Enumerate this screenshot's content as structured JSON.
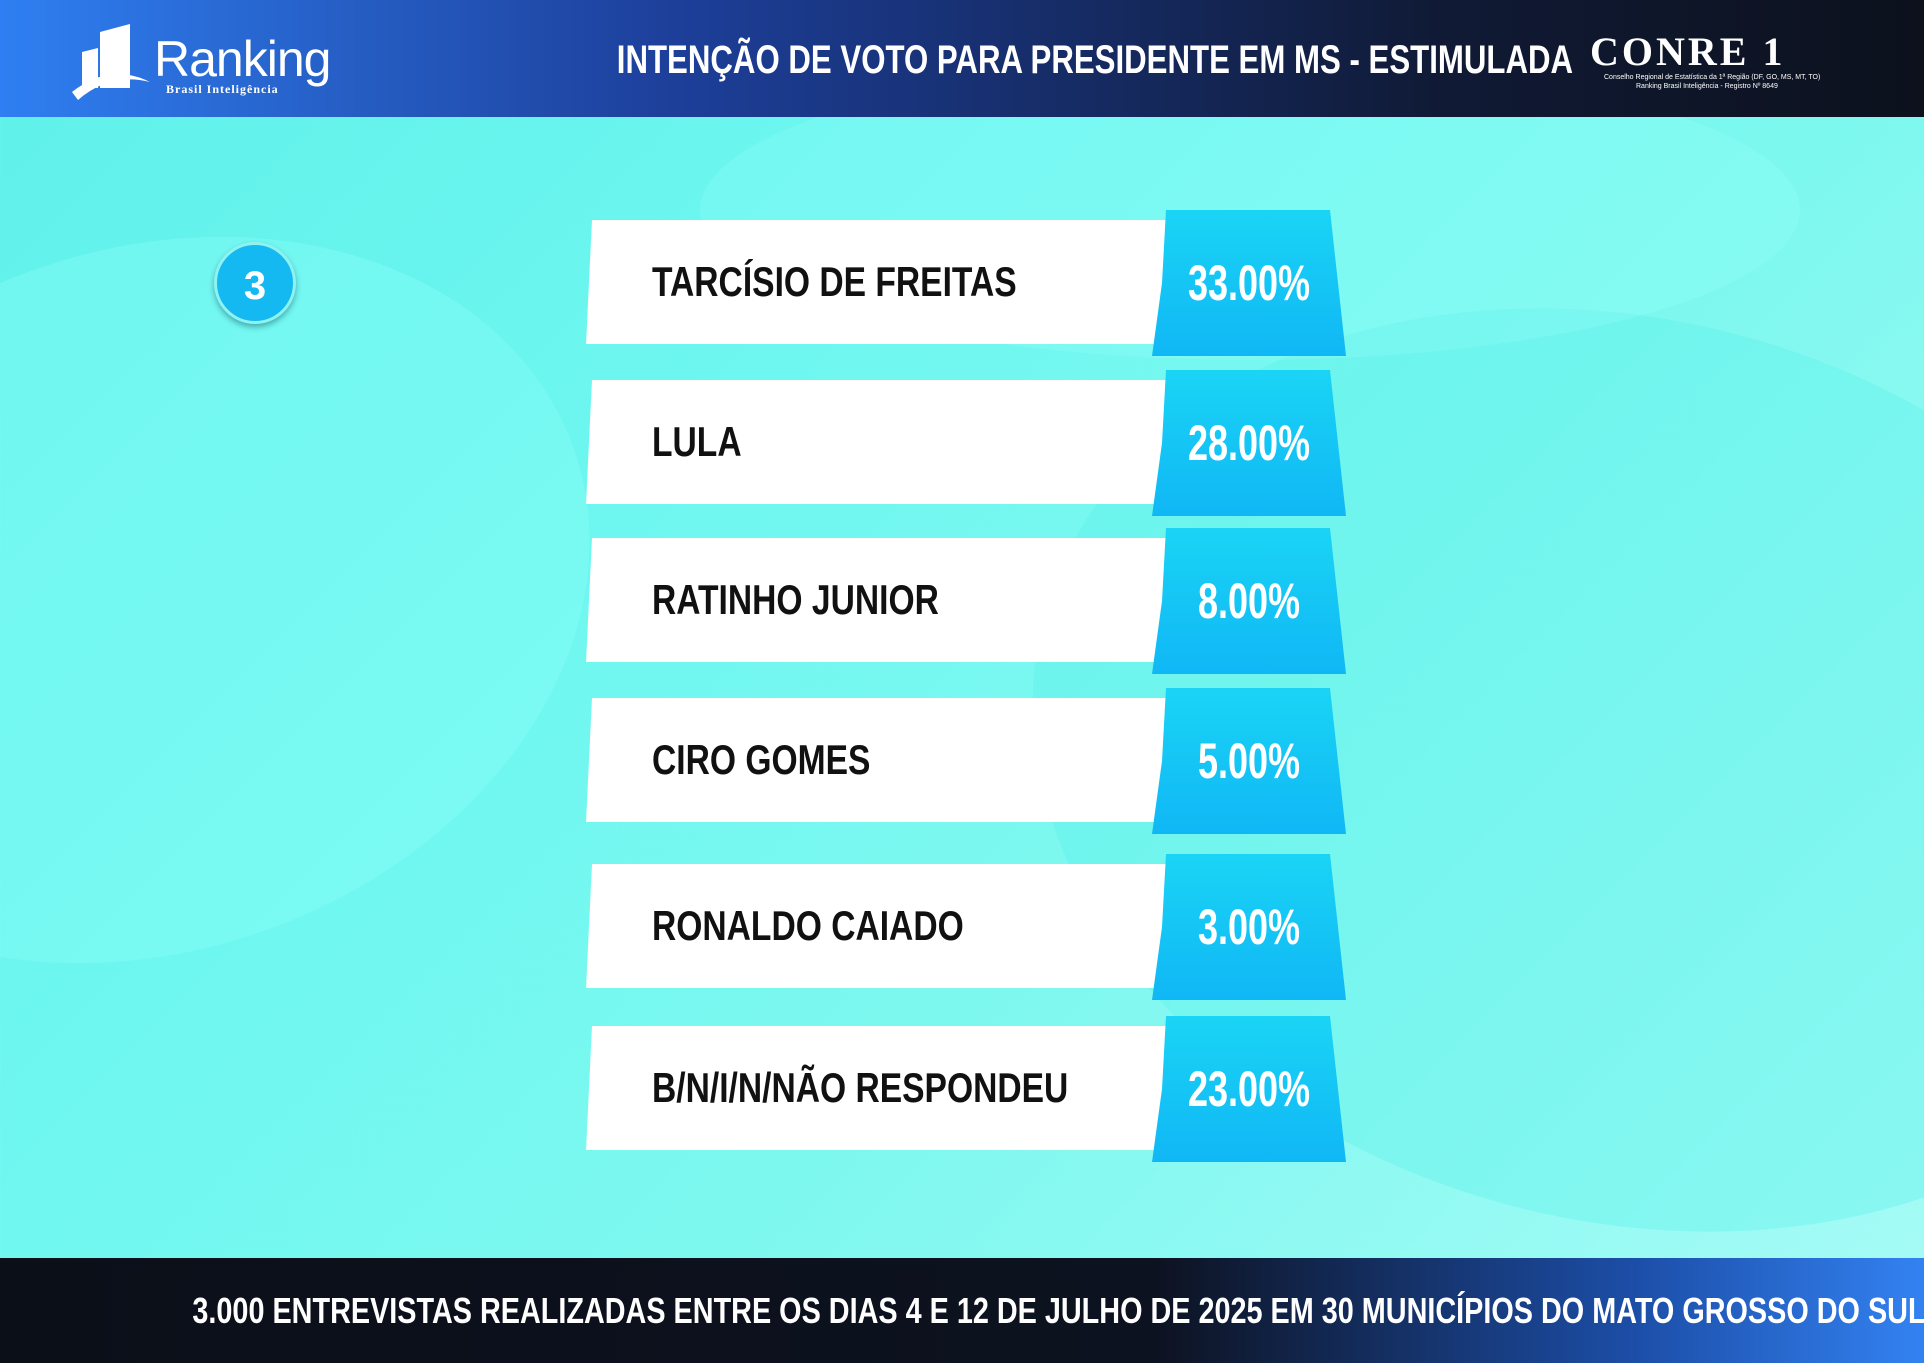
{
  "header": {
    "brand_name": "Ranking",
    "brand_sub": "Brasil Inteligência",
    "title": "INTENÇÃO DE VOTO PARA PRESIDENTE EM MS - ESTIMULADA",
    "partner_name": "CONRE 1",
    "partner_sub1": "Conselho Regional de Estatística da 1ª Região (DF, GO, MS, MT, TO)",
    "partner_sub2": "Ranking Brasil Inteligência - Registro Nº 8649"
  },
  "badge": "3",
  "chart_data": {
    "type": "bar",
    "categories": [
      "TARCÍSIO DE FREITAS",
      "LULA",
      "RATINHO JUNIOR",
      "CIRO GOMES",
      "RONALDO CAIADO",
      "B/N/I/N/NÃO RESPONDEU"
    ],
    "values": [
      33.0,
      28.0,
      8.0,
      5.0,
      3.0,
      23.0
    ],
    "value_labels": [
      "33.00%",
      "28.00%",
      "8.00%",
      "5.00%",
      "3.00%",
      "23.00%"
    ],
    "title": "INTENÇÃO DE VOTO PARA PRESIDENTE EM MS - ESTIMULADA"
  },
  "footer": {
    "text": "3.000 ENTREVISTAS REALIZADAS ENTRE OS DIAS 4 E 12 DE JULHO DE 2025 EM 30 MUNICÍPIOS DO MATO GROSSO DO SUL"
  },
  "colors": {
    "accent": "#14b9f1",
    "background": "#6ef7f0",
    "header_dark": "#0c111c"
  }
}
